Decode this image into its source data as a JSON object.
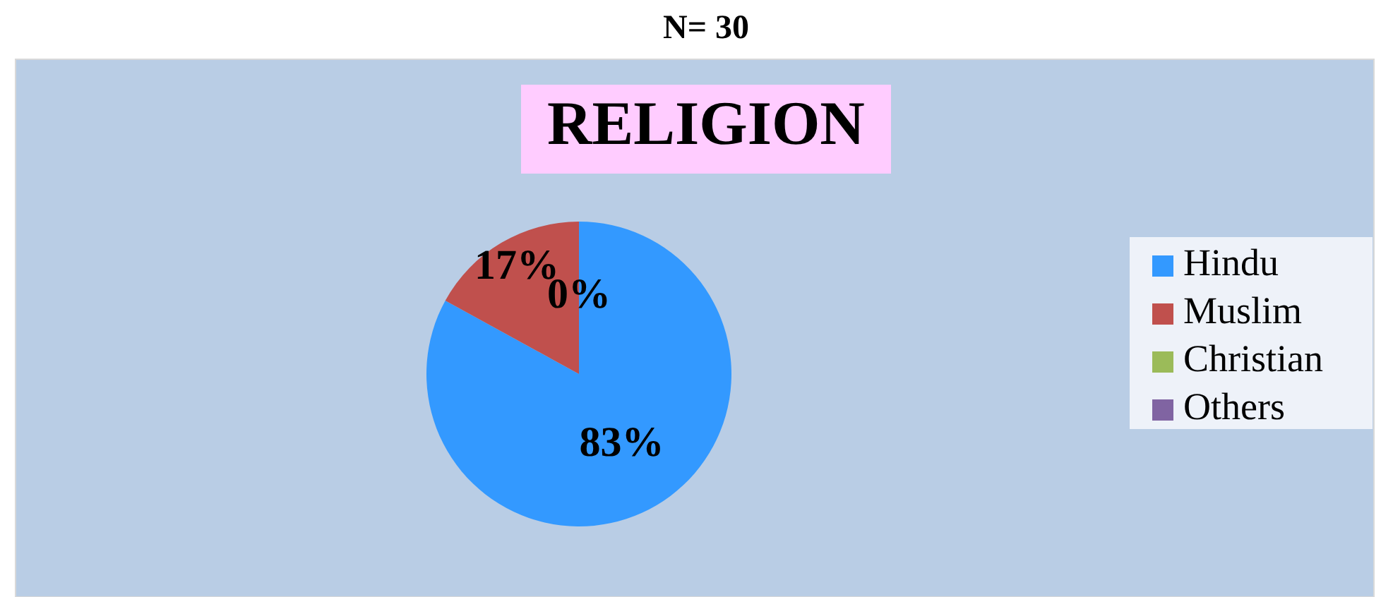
{
  "chart_data": {
    "type": "pie",
    "title": "RELIGION",
    "subtitle": "N= 30",
    "categories": [
      "Hindu",
      "Muslim",
      "Christian",
      "Others"
    ],
    "values": [
      83,
      17,
      0,
      0
    ],
    "colors": [
      "#3399ff",
      "#c0504d",
      "#9bbb59",
      "#8064a2"
    ],
    "value_labels": [
      "83%",
      "17%",
      "0%",
      null
    ],
    "legend": "right"
  }
}
